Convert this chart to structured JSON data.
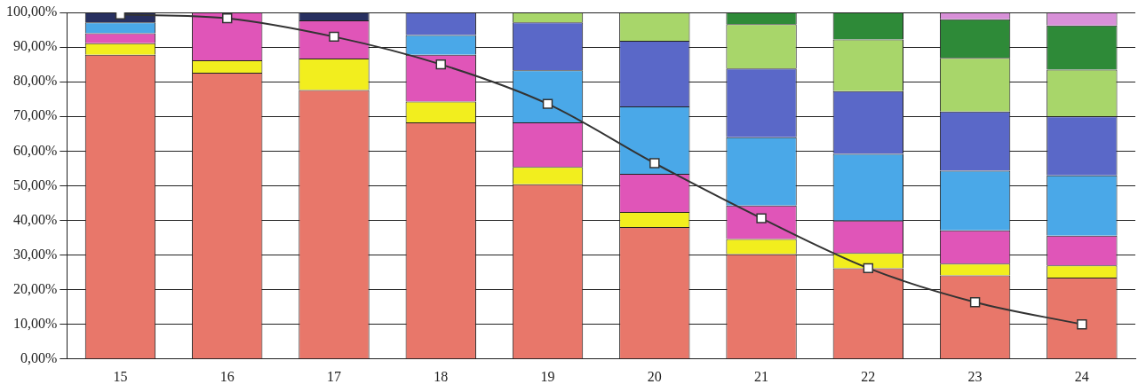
{
  "chart_data": {
    "type": "bar",
    "stacked": true,
    "categories": [
      "15",
      "16",
      "17",
      "18",
      "19",
      "20",
      "21",
      "22",
      "23",
      "24"
    ],
    "series": [
      {
        "color": "#e8776a",
        "values": [
          87.8,
          82.6,
          77.6,
          68.3,
          50.4,
          38.1,
          30.3,
          26.2,
          24.1,
          23.5
        ]
      },
      {
        "color": "#f2ee1e",
        "values": [
          3.3,
          3.6,
          9.1,
          6.0,
          5.0,
          4.3,
          4.3,
          4.4,
          3.4,
          3.5
        ]
      },
      {
        "color": "#e055b8",
        "values": [
          2.9,
          13.8,
          11.0,
          13.5,
          12.9,
          11.0,
          9.7,
          9.3,
          9.6,
          8.6
        ]
      },
      {
        "color": "#4aa8e8",
        "values": [
          3.1,
          null,
          null,
          5.7,
          15.0,
          19.5,
          19.7,
          19.3,
          17.2,
          17.4
        ]
      },
      {
        "color": "#5a68c8",
        "values": [
          null,
          null,
          null,
          6.5,
          13.8,
          18.9,
          19.8,
          18.1,
          17.1,
          17.0
        ]
      },
      {
        "color": "#a8d66a",
        "values": [
          null,
          null,
          null,
          null,
          2.9,
          8.2,
          12.8,
          14.9,
          15.5,
          13.5
        ]
      },
      {
        "color": "#2e8a38",
        "values": [
          null,
          null,
          null,
          null,
          null,
          null,
          3.4,
          7.8,
          11.1,
          12.7
        ]
      },
      {
        "color": "#d890d8",
        "values": [
          null,
          null,
          null,
          null,
          null,
          null,
          null,
          null,
          2.0,
          3.8
        ]
      },
      {
        "color": "#283060",
        "values": [
          2.9,
          null,
          2.3,
          null,
          null,
          null,
          null,
          null,
          null,
          null
        ]
      },
      {
        "type": "line",
        "color": "#333333",
        "marker": "square",
        "values": [
          99.4,
          98.3,
          93.0,
          85.0,
          73.6,
          56.5,
          40.6,
          26.2,
          16.4,
          10.0
        ]
      }
    ],
    "ylim": [
      0,
      100
    ],
    "yticks": [
      {
        "value": 0,
        "label": "0,00%"
      },
      {
        "value": 10,
        "label": "10,00%"
      },
      {
        "value": 20,
        "label": "20,00%"
      },
      {
        "value": 30,
        "label": "30,00%"
      },
      {
        "value": 40,
        "label": "40,00%"
      },
      {
        "value": 50,
        "label": "50,00%"
      },
      {
        "value": 60,
        "label": "60,00%"
      },
      {
        "value": 70,
        "label": "70,00%"
      },
      {
        "value": 80,
        "label": "80,00%"
      },
      {
        "value": 90,
        "label": "90,00%"
      },
      {
        "value": 100,
        "label": "100,00%"
      }
    ],
    "grid": "y",
    "legend": false
  }
}
